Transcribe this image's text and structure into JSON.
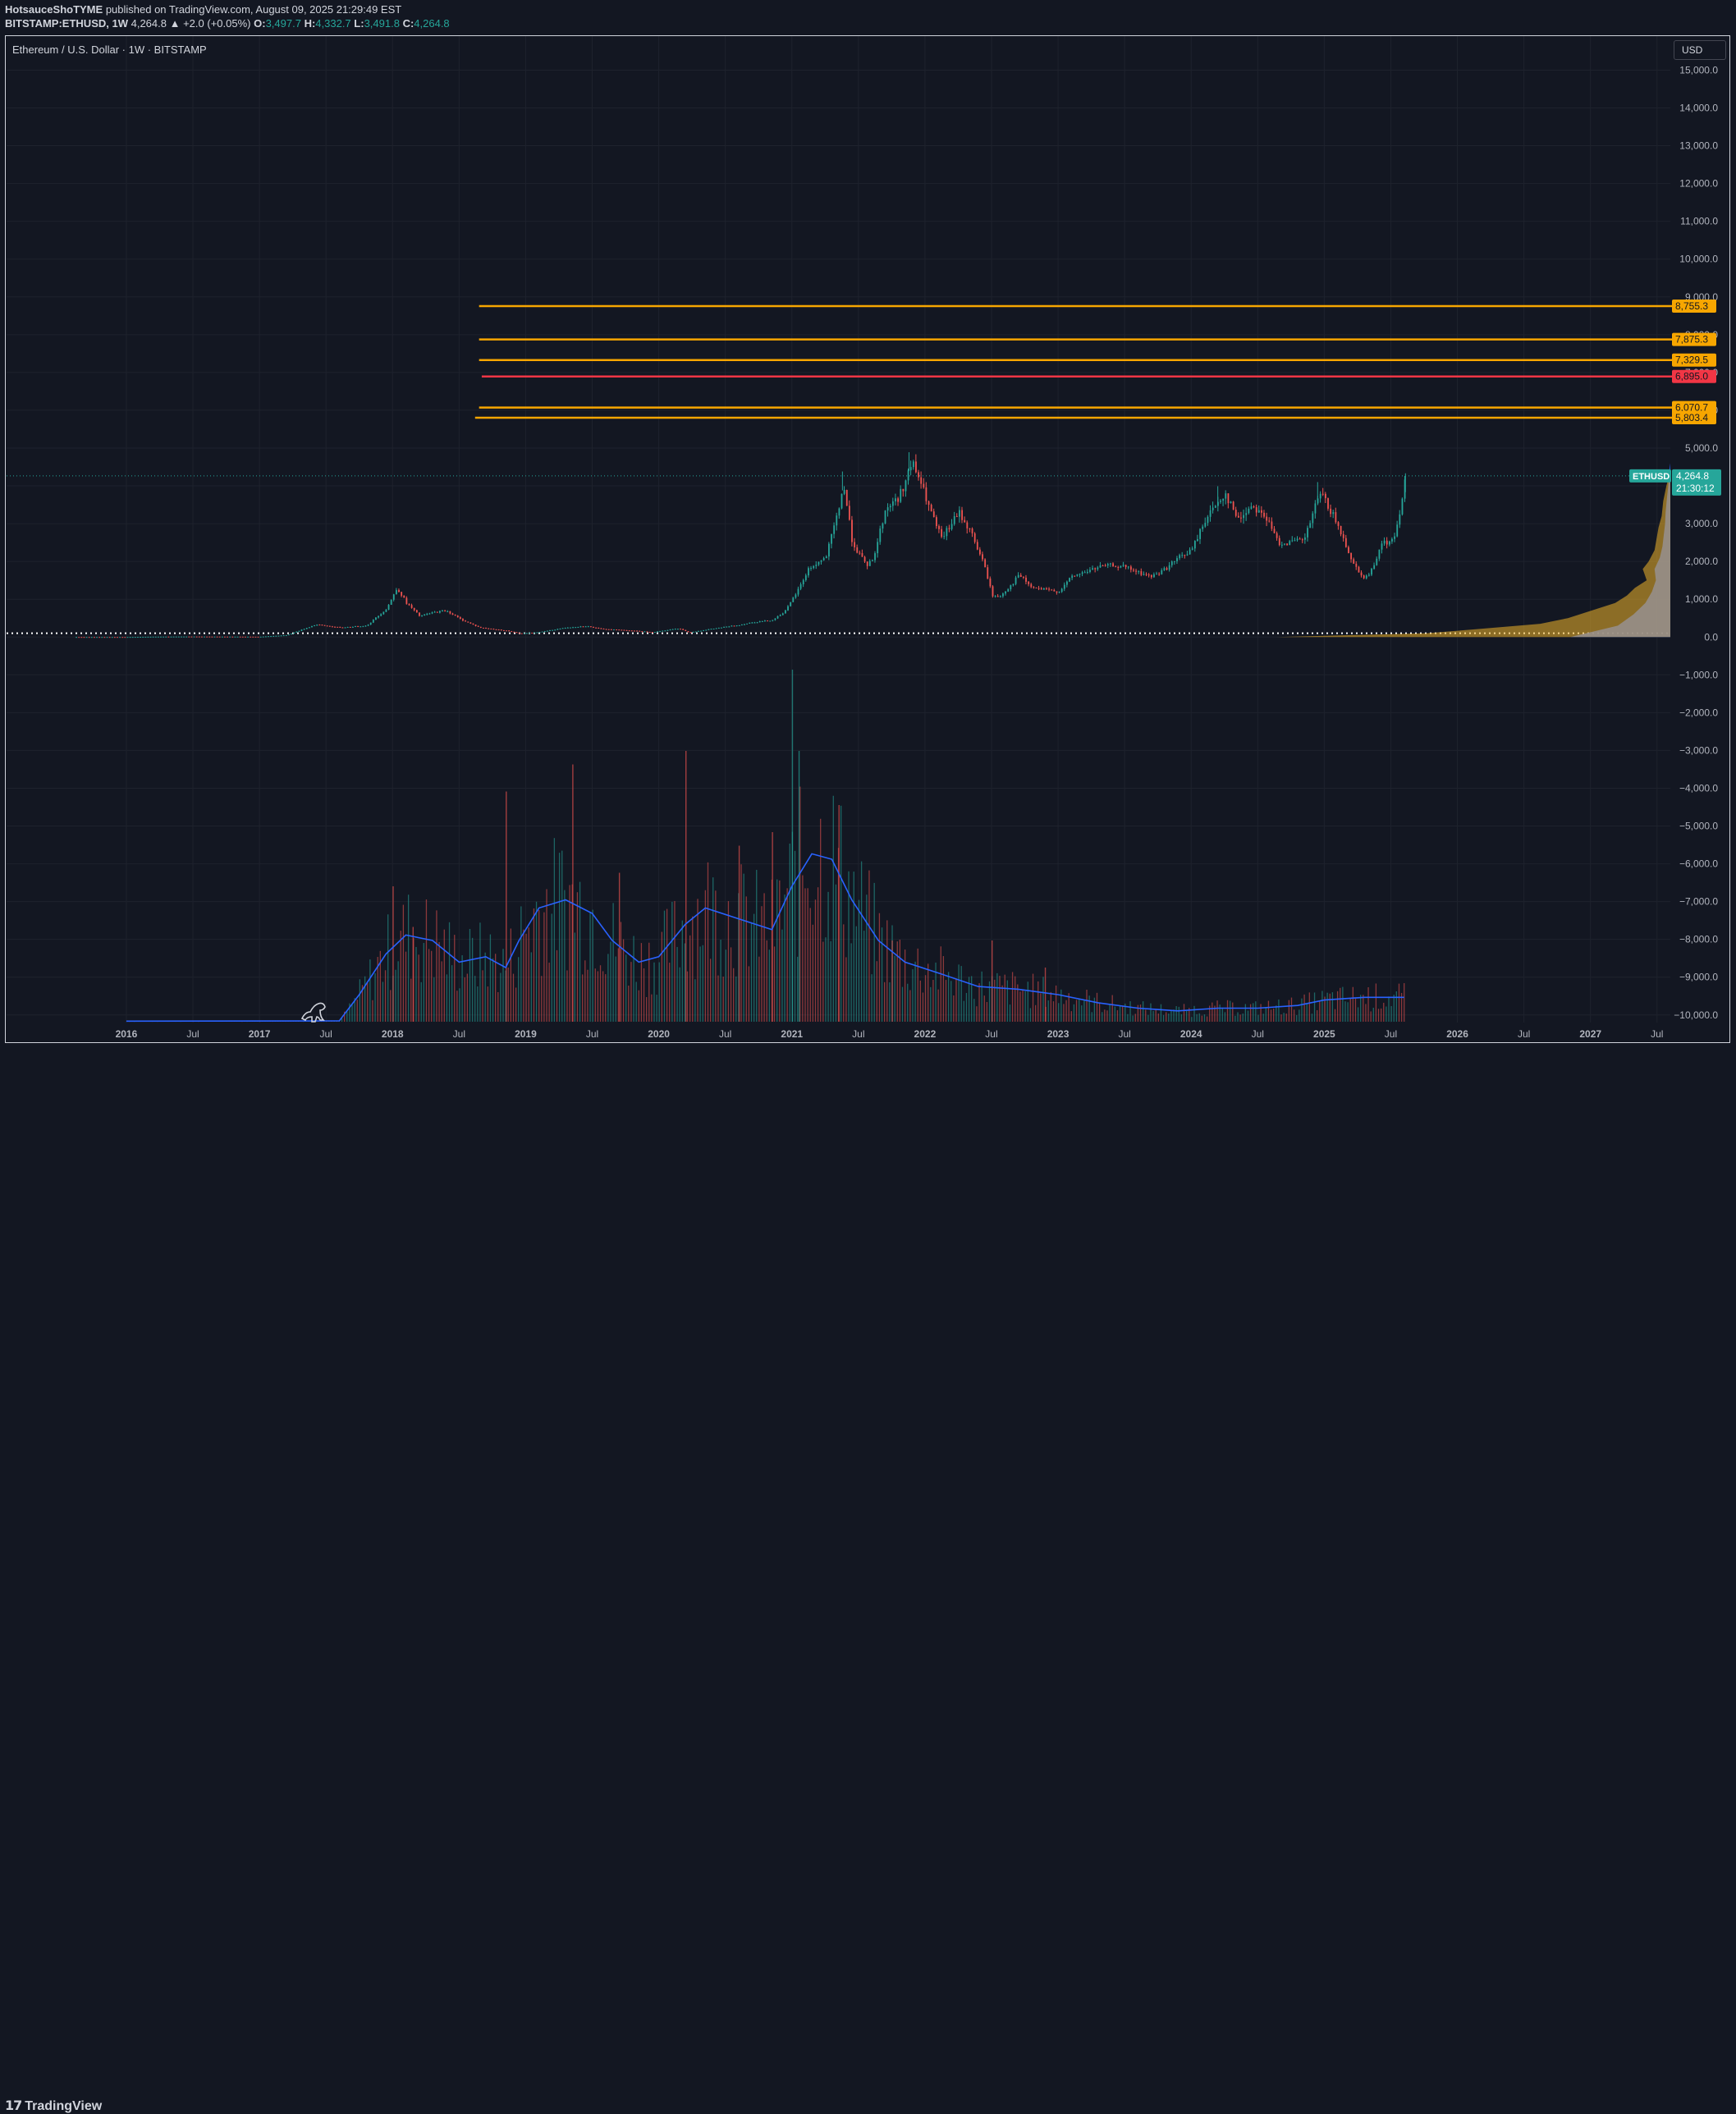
{
  "header": {
    "author": "HotsauceShoTYME",
    "published_text": "published on TradingView.com, August 09, 2025 21:29:49 EST",
    "symbol_line": "BITSTAMP:ETHUSD, 1W",
    "price": "4,264.8",
    "change": "▲ +2.0 (+0.05%)",
    "open_label": "O:",
    "open": "3,497.7",
    "high_label": "H:",
    "high": "4,332.7",
    "low_label": "L:",
    "low": "3,491.8",
    "close_label": "C:",
    "close": "4,264.8"
  },
  "chart_title": "Ethereum / U.S. Dollar · 1W · BITSTAMP",
  "currency": "USD",
  "footer": {
    "logo_text": "TradingView"
  },
  "colors": {
    "background": "#131722",
    "up": "#26a69a",
    "down": "#ef5350",
    "level_orange": "#f7a600",
    "level_red": "#f23645",
    "volume_ma": "#2962ff",
    "profile_blue": "#2962ff",
    "profile_gold": "#f0b429"
  },
  "chart_data": {
    "type": "candlestick",
    "symbol": "ETHUSD",
    "price_label": "4,264.8",
    "countdown": "21:30:12",
    "x_ticks": [
      "2016",
      "Jul",
      "2017",
      "Jul",
      "2018",
      "Jul",
      "2019",
      "Jul",
      "2020",
      "Jul",
      "2021",
      "Jul",
      "2022",
      "Jul",
      "2023",
      "Jul",
      "2024",
      "Jul",
      "2025",
      "Jul",
      "2026",
      "Jul",
      "2027",
      "Jul"
    ],
    "y_ticks": [
      "15,000.0",
      "14,000.0",
      "13,000.0",
      "12,000.0",
      "11,000.0",
      "10,000.0",
      "9,000.0",
      "8,000.0",
      "7,000.0",
      "6,000.0",
      "5,000.0",
      "4,000.0",
      "3,000.0",
      "2,000.0",
      "1,000.0",
      "0.0",
      "−1,000.0",
      "−2,000.0",
      "−3,000.0",
      "−4,000.0",
      "−5,000.0",
      "−6,000.0",
      "−7,000.0",
      "−8,000.0",
      "−9,000.0",
      "−10,000.0"
    ],
    "ylim": [
      -10200,
      15900
    ],
    "xlim": [
      2015.1,
      2027.6
    ],
    "levels": [
      {
        "value": 8755.3,
        "label": "8,755.3",
        "color": "#f7a600",
        "x_start": 2018.65
      },
      {
        "value": 7875.3,
        "label": "7,875.3",
        "color": "#f7a600",
        "x_start": 2018.65
      },
      {
        "value": 7329.5,
        "label": "7,329.5",
        "color": "#f7a600",
        "x_start": 2018.65
      },
      {
        "value": 6895.0,
        "label": "6,895.0",
        "color": "#f23645",
        "x_start": 2018.67
      },
      {
        "value": 6070.7,
        "label": "6,070.7",
        "color": "#f7a600",
        "x_start": 2018.65
      },
      {
        "value": 5803.4,
        "label": "5,803.4",
        "color": "#f7a600",
        "x_start": 2018.62
      }
    ],
    "price_series": [
      [
        2015.6,
        1
      ],
      [
        2016.0,
        1
      ],
      [
        2016.2,
        10
      ],
      [
        2016.45,
        14
      ],
      [
        2016.7,
        12
      ],
      [
        2017.0,
        9
      ],
      [
        2017.2,
        50
      ],
      [
        2017.42,
        330
      ],
      [
        2017.6,
        250
      ],
      [
        2017.8,
        300
      ],
      [
        2017.95,
        750
      ],
      [
        2018.03,
        1300
      ],
      [
        2018.1,
        900
      ],
      [
        2018.2,
        550
      ],
      [
        2018.3,
        650
      ],
      [
        2018.4,
        700
      ],
      [
        2018.5,
        480
      ],
      [
        2018.65,
        250
      ],
      [
        2018.85,
        170
      ],
      [
        2018.95,
        95
      ],
      [
        2019.1,
        130
      ],
      [
        2019.3,
        250
      ],
      [
        2019.45,
        290
      ],
      [
        2019.55,
        220
      ],
      [
        2019.75,
        180
      ],
      [
        2019.95,
        130
      ],
      [
        2020.15,
        230
      ],
      [
        2020.22,
        120
      ],
      [
        2020.4,
        220
      ],
      [
        2020.6,
        320
      ],
      [
        2020.7,
        390
      ],
      [
        2020.85,
        450
      ],
      [
        2020.95,
        700
      ],
      [
        2021.05,
        1300
      ],
      [
        2021.12,
        1800
      ],
      [
        2021.25,
        2100
      ],
      [
        2021.35,
        3400
      ],
      [
        2021.38,
        4100
      ],
      [
        2021.45,
        2500
      ],
      [
        2021.55,
        1900
      ],
      [
        2021.6,
        2000
      ],
      [
        2021.7,
        3400
      ],
      [
        2021.8,
        3700
      ],
      [
        2021.9,
        4600
      ],
      [
        2021.95,
        4200
      ],
      [
        2022.05,
        3200
      ],
      [
        2022.12,
        2600
      ],
      [
        2022.25,
        3300
      ],
      [
        2022.35,
        2700
      ],
      [
        2022.45,
        1800
      ],
      [
        2022.5,
        1100
      ],
      [
        2022.55,
        1050
      ],
      [
        2022.65,
        1400
      ],
      [
        2022.7,
        1650
      ],
      [
        2022.8,
        1300
      ],
      [
        2022.9,
        1250
      ],
      [
        2023.0,
        1200
      ],
      [
        2023.1,
        1600
      ],
      [
        2023.3,
        1850
      ],
      [
        2023.4,
        1900
      ],
      [
        2023.5,
        1850
      ],
      [
        2023.6,
        1700
      ],
      [
        2023.7,
        1600
      ],
      [
        2023.8,
        1800
      ],
      [
        2023.9,
        2100
      ],
      [
        2024.0,
        2300
      ],
      [
        2024.1,
        3100
      ],
      [
        2024.2,
        3600
      ],
      [
        2024.25,
        3800
      ],
      [
        2024.35,
        3100
      ],
      [
        2024.45,
        3500
      ],
      [
        2024.55,
        3200
      ],
      [
        2024.65,
        2500
      ],
      [
        2024.75,
        2500
      ],
      [
        2024.85,
        2600
      ],
      [
        2024.92,
        3400
      ],
      [
        2024.97,
        3800
      ],
      [
        2025.05,
        3300
      ],
      [
        2025.15,
        2500
      ],
      [
        2025.22,
        1900
      ],
      [
        2025.3,
        1550
      ],
      [
        2025.36,
        1800
      ],
      [
        2025.42,
        2500
      ],
      [
        2025.5,
        2500
      ],
      [
        2025.55,
        3000
      ],
      [
        2025.58,
        3700
      ],
      [
        2025.61,
        4264.8
      ]
    ],
    "volume_ma": [
      [
        2016.0,
        0.002
      ],
      [
        2017.6,
        0.003
      ],
      [
        2017.75,
        0.1
      ],
      [
        2017.95,
        0.25
      ],
      [
        2018.1,
        0.32
      ],
      [
        2018.3,
        0.3
      ],
      [
        2018.5,
        0.22
      ],
      [
        2018.7,
        0.24
      ],
      [
        2018.85,
        0.2
      ],
      [
        2018.95,
        0.3
      ],
      [
        2019.1,
        0.42
      ],
      [
        2019.3,
        0.45
      ],
      [
        2019.5,
        0.4
      ],
      [
        2019.65,
        0.3
      ],
      [
        2019.85,
        0.22
      ],
      [
        2020.0,
        0.24
      ],
      [
        2020.2,
        0.36
      ],
      [
        2020.35,
        0.42
      ],
      [
        2020.6,
        0.38
      ],
      [
        2020.85,
        0.34
      ],
      [
        2021.0,
        0.5
      ],
      [
        2021.15,
        0.62
      ],
      [
        2021.3,
        0.6
      ],
      [
        2021.45,
        0.45
      ],
      [
        2021.65,
        0.3
      ],
      [
        2021.85,
        0.22
      ],
      [
        2022.1,
        0.18
      ],
      [
        2022.4,
        0.13
      ],
      [
        2022.7,
        0.12
      ],
      [
        2023.0,
        0.1
      ],
      [
        2023.3,
        0.07
      ],
      [
        2023.6,
        0.05
      ],
      [
        2023.9,
        0.04
      ],
      [
        2024.2,
        0.05
      ],
      [
        2024.5,
        0.05
      ],
      [
        2024.8,
        0.06
      ],
      [
        2025.0,
        0.08
      ],
      [
        2025.3,
        0.09
      ],
      [
        2025.6,
        0.09
      ]
    ],
    "volume_spikes": [
      [
        2018.0,
        0.5
      ],
      [
        2018.15,
        0.35
      ],
      [
        2018.85,
        0.85
      ],
      [
        2019.35,
        0.95
      ],
      [
        2020.2,
        1.0
      ],
      [
        2021.0,
        1.3
      ],
      [
        2021.05,
        1.0
      ],
      [
        2021.35,
        0.8
      ],
      [
        2020.85,
        0.7
      ],
      [
        2020.6,
        0.65
      ],
      [
        2019.7,
        0.55
      ],
      [
        2021.75,
        0.3
      ],
      [
        2022.5,
        0.3
      ],
      [
        2022.9,
        0.2
      ]
    ]
  }
}
